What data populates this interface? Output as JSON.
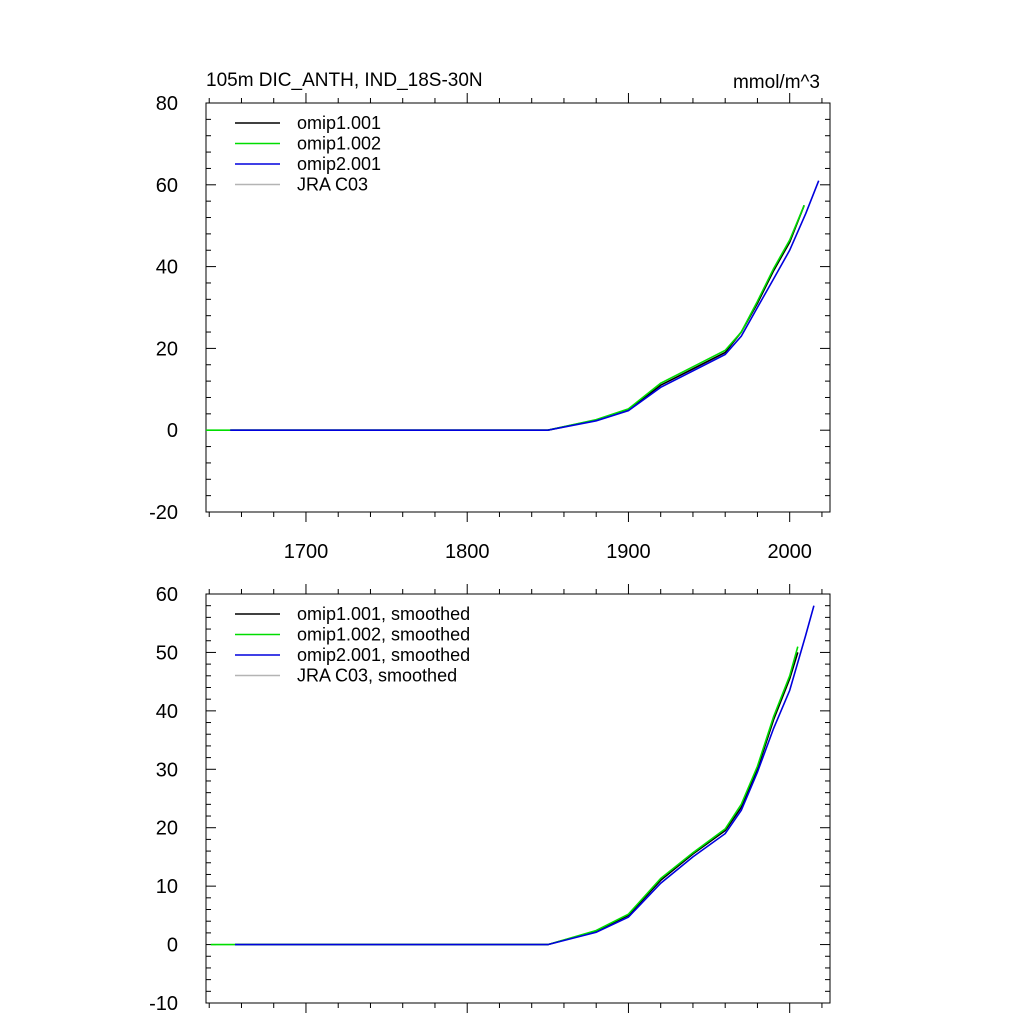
{
  "chart_data": [
    {
      "type": "line",
      "title": "105m DIC_ANTH, IND_18S-30N",
      "units": "mmol/m^3",
      "xlim": [
        1638,
        2025
      ],
      "ylim": [
        -20,
        80
      ],
      "xticks": [
        1700,
        1800,
        1900,
        2000
      ],
      "xtick_labels": [
        "1700",
        "1800",
        "1900",
        "2000"
      ],
      "yticks": [
        -20,
        0,
        20,
        40,
        60,
        80
      ],
      "ytick_labels": [
        "-20",
        "0",
        "20",
        "40",
        "60",
        "80"
      ],
      "legend_position": "top-left",
      "series": [
        {
          "name": "omip1.001",
          "color": "#000000",
          "x": [
            1653,
            1850,
            1880,
            1900,
            1920,
            1940,
            1960,
            1970,
            1980,
            1990,
            2000,
            2009
          ],
          "y": [
            0,
            0,
            2.5,
            5,
            11,
            15,
            19,
            24,
            31,
            39,
            46,
            55
          ]
        },
        {
          "name": "omip1.002",
          "color": "#00dd00",
          "x": [
            1638,
            1653,
            1850,
            1880,
            1900,
            1920,
            1940,
            1960,
            1970,
            1980,
            1990,
            2000,
            2009
          ],
          "y": [
            0,
            0,
            0,
            2.6,
            5.2,
            11.5,
            15.5,
            19.5,
            24,
            31.5,
            39.5,
            46.5,
            55
          ]
        },
        {
          "name": "omip2.001",
          "color": "#0000dd",
          "x": [
            1653,
            1850,
            1880,
            1900,
            1920,
            1940,
            1960,
            1970,
            1980,
            1990,
            2000,
            2010,
            2018
          ],
          "y": [
            0,
            0,
            2.3,
            4.8,
            10.5,
            14.5,
            18.5,
            23,
            30,
            37,
            44,
            53,
            61
          ]
        },
        {
          "name": "JRA C03",
          "color": "#b4b4b4",
          "x": [],
          "y": []
        }
      ]
    },
    {
      "type": "line",
      "title": "",
      "xlim": [
        1638,
        2025
      ],
      "ylim": [
        -10,
        60
      ],
      "xticks": [
        1700,
        1800,
        1900,
        2000
      ],
      "xtick_labels": [],
      "yticks": [
        -10,
        0,
        10,
        20,
        30,
        40,
        50,
        60
      ],
      "ytick_labels": [
        "-10",
        "0",
        "10",
        "20",
        "30",
        "40",
        "50",
        "60"
      ],
      "legend_position": "top-left",
      "series": [
        {
          "name": "omip1.001, smoothed",
          "color": "#000000",
          "x": [
            1656,
            1850,
            1880,
            1900,
            1920,
            1940,
            1960,
            1970,
            1980,
            1990,
            2000,
            2005
          ],
          "y": [
            0,
            0,
            2.3,
            5,
            11,
            15.5,
            19.5,
            23.5,
            30,
            38.5,
            45.5,
            50
          ]
        },
        {
          "name": "omip1.002, smoothed",
          "color": "#00dd00",
          "x": [
            1641,
            1656,
            1850,
            1880,
            1900,
            1920,
            1940,
            1960,
            1970,
            1980,
            1990,
            2000,
            2005
          ],
          "y": [
            0,
            0,
            0,
            2.4,
            5.2,
            11.3,
            15.7,
            19.8,
            24,
            30.5,
            39,
            46,
            51
          ]
        },
        {
          "name": "omip2.001, smoothed",
          "color": "#0000dd",
          "x": [
            1656,
            1850,
            1880,
            1900,
            1920,
            1940,
            1960,
            1970,
            1980,
            1990,
            2000,
            2010,
            2015
          ],
          "y": [
            0,
            0,
            2.1,
            4.7,
            10.5,
            15,
            19,
            23,
            29.5,
            37,
            43.5,
            53,
            58
          ]
        },
        {
          "name": "JRA C03, smoothed",
          "color": "#b4b4b4",
          "x": [],
          "y": []
        }
      ]
    }
  ]
}
